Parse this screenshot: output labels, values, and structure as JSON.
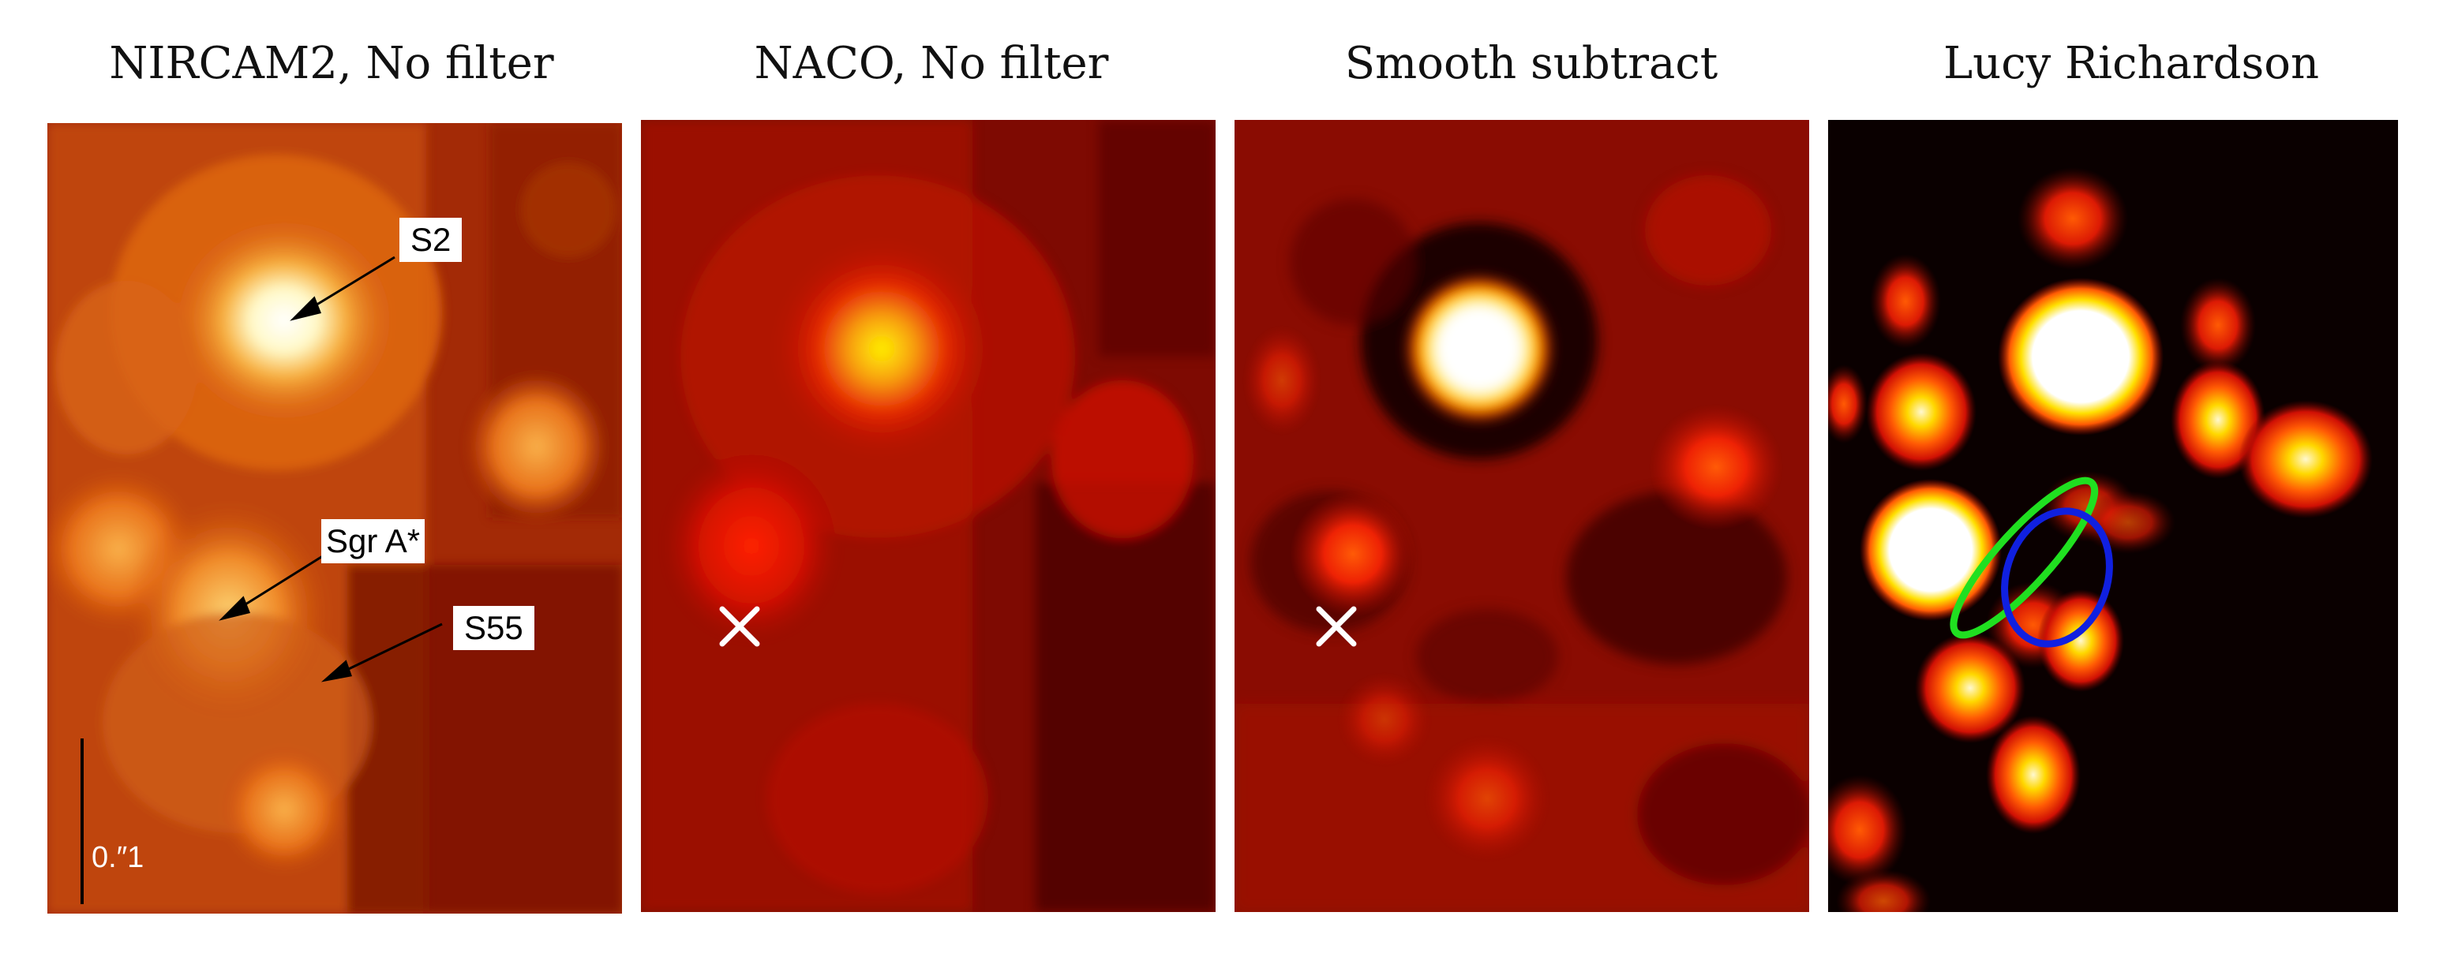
{
  "panels": [
    {
      "title": "NIRCAM2, No filter"
    },
    {
      "title": "NACO, No filter"
    },
    {
      "title": "Smooth subtract"
    },
    {
      "title": "Lucy Richardson"
    }
  ],
  "annotations": {
    "s2": "S2",
    "sgr_a": "Sgr A*",
    "s55": "S55",
    "scale_bar": "0.″1"
  },
  "colors": {
    "background_dark": "#5a0800",
    "mid_red": "#c51a00",
    "orange": "#f07a10",
    "yellow": "#ffe000",
    "white": "#ffffff",
    "blue_ellipse": "#1020e0",
    "green_ellipse": "#20e020"
  }
}
